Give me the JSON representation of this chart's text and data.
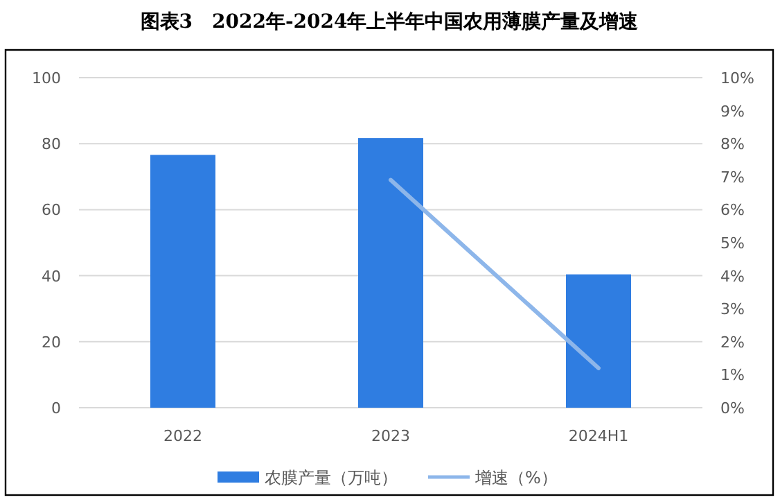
{
  "chart_data": {
    "type": "bar",
    "title": "图表3　2022年-2024年上半年中国农用薄膜产量及增速",
    "categories": [
      "2022",
      "2023",
      "2024H1"
    ],
    "series": [
      {
        "name": "农膜产量（万吨）",
        "color": "#2f7de1",
        "values": [
          76.6,
          81.7,
          40.4
        ]
      },
      {
        "name": "增速（%）",
        "type": "line",
        "axis": "y2",
        "color": "#8db6ea",
        "values": [
          null,
          6.9,
          1.2
        ]
      }
    ],
    "ylim": [
      0,
      100
    ],
    "yticks": [
      0,
      20,
      40,
      60,
      80,
      100
    ],
    "y2lim": [
      0,
      10
    ],
    "y2ticks": [
      {
        "value": 0,
        "label": "0%"
      },
      {
        "value": 1,
        "label": "1%"
      },
      {
        "value": 2,
        "label": "2%"
      },
      {
        "value": 3,
        "label": "3%"
      },
      {
        "value": 4,
        "label": "4%"
      },
      {
        "value": 5,
        "label": "5%"
      },
      {
        "value": 6,
        "label": "6%"
      },
      {
        "value": 7,
        "label": "7%"
      },
      {
        "value": 8,
        "label": "8%"
      },
      {
        "value": 9,
        "label": "9%"
      },
      {
        "value": 10,
        "label": "10%"
      }
    ],
    "grid": "y",
    "legend": "bottom"
  }
}
